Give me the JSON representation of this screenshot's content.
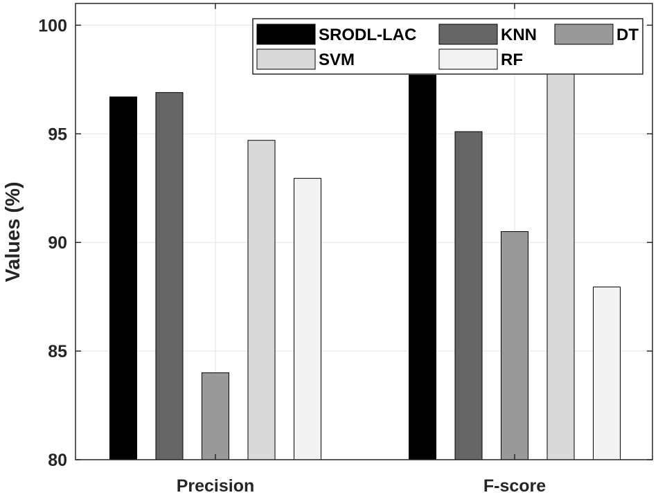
{
  "chart_data": {
    "type": "bar",
    "title": "",
    "xlabel": "",
    "ylabel": "Values (%)",
    "categories": [
      "Precision",
      "F-score"
    ],
    "ylim": [
      80,
      101
    ],
    "yticks": [
      80,
      85,
      90,
      95,
      100
    ],
    "grid": true,
    "legend_position": "top-right",
    "series": [
      {
        "name": "SRODL-LAC",
        "color": "#000000",
        "values": [
          96.7,
          97.7
        ]
      },
      {
        "name": "KNN",
        "color": "#666666",
        "values": [
          96.9,
          95.1
        ]
      },
      {
        "name": "DT",
        "color": "#999999",
        "values": [
          84.0,
          90.5
        ]
      },
      {
        "name": "SVM",
        "color": "#d9d9d9",
        "values": [
          94.7,
          97.8
        ]
      },
      {
        "name": "RF",
        "color": "#f2f2f2",
        "values": [
          92.95,
          87.95
        ]
      }
    ]
  }
}
